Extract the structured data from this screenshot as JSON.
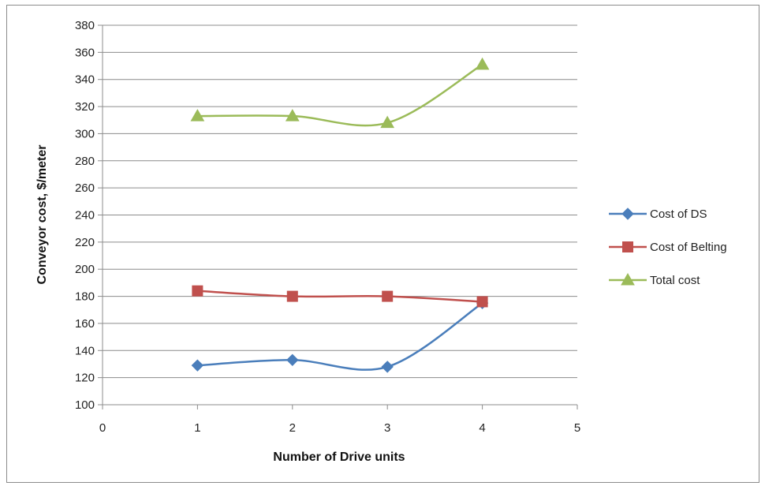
{
  "chart_data": {
    "type": "line",
    "smooth": true,
    "x": [
      1,
      2,
      3,
      4
    ],
    "xlim": [
      0,
      5
    ],
    "x_ticks": [
      0,
      1,
      2,
      3,
      4,
      5
    ],
    "ylim": [
      100,
      380
    ],
    "y_ticks": [
      100,
      120,
      140,
      160,
      180,
      200,
      220,
      240,
      260,
      280,
      300,
      320,
      340,
      360,
      380
    ],
    "xlabel": "Number of Drive units",
    "ylabel": "Conveyor cost, $/meter",
    "grid": "horizontal",
    "legend_position": "right",
    "series": [
      {
        "name": "Cost of DS",
        "values": [
          129,
          133,
          128,
          175
        ],
        "color": "#4a7ebb",
        "marker": "diamond"
      },
      {
        "name": "Cost of Belting",
        "values": [
          184,
          180,
          180,
          176
        ],
        "color": "#c0504d",
        "marker": "square"
      },
      {
        "name": "Total cost",
        "values": [
          313,
          313,
          308,
          351
        ],
        "color": "#9bbb59",
        "marker": "triangle"
      }
    ]
  }
}
